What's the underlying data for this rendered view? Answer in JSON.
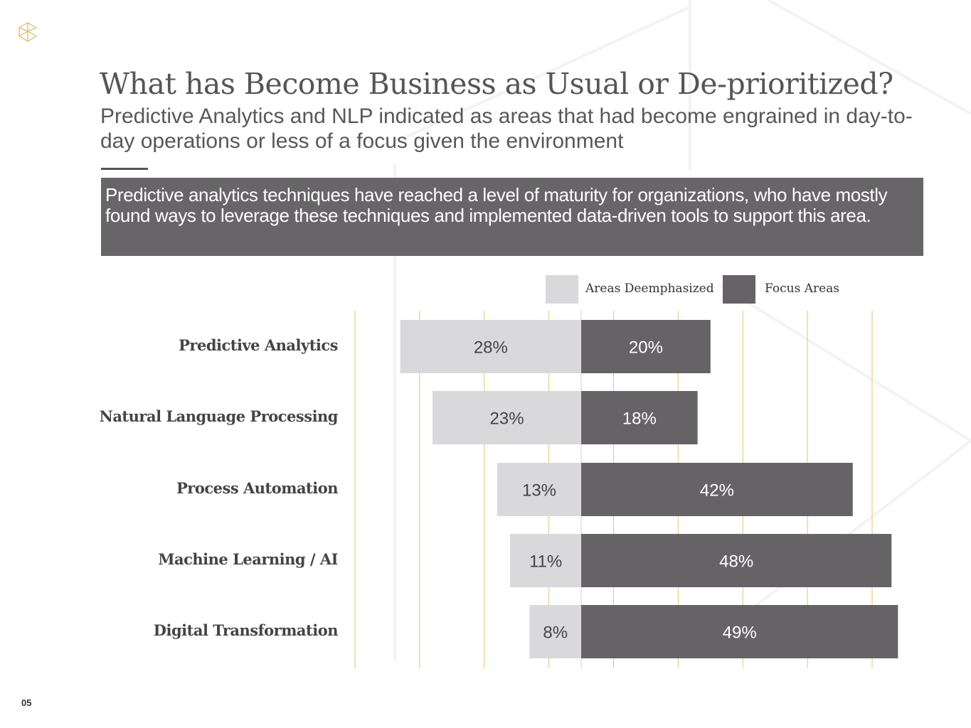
{
  "title": "What has Become Business as Usual or De-prioritized?",
  "subtitle": "Predictive Analytics and NLP indicated as areas that had become engrained in day-to-day operations or less of a focus given the environment",
  "callout": "Predictive analytics techniques have reached a level of maturity for organizations, who have mostly found ways to leverage these techniques and implemented data-driven tools to support this area.",
  "page_number": "05",
  "colors": {
    "deemphasized": "#d9d9db",
    "focus": "#656366",
    "grid": "#e2c56e",
    "accent": "#e0b96a"
  },
  "chart_data": {
    "type": "bar",
    "orientation": "horizontal-diverging",
    "categories": [
      "Predictive Analytics",
      "Natural Language Processing",
      "Process Automation",
      "Machine Learning / AI",
      "Digital Transformation"
    ],
    "series": [
      {
        "name": "Areas Deemphasized",
        "values": [
          28,
          23,
          13,
          11,
          8
        ],
        "labels": [
          "28%",
          "23%",
          "13%",
          "11%",
          "8%"
        ]
      },
      {
        "name": "Focus Areas",
        "values": [
          20,
          18,
          42,
          48,
          49
        ],
        "labels": [
          "20%",
          "18%",
          "42%",
          "48%",
          "49%"
        ]
      }
    ],
    "xlim": [
      -35,
      45
    ],
    "grid": true,
    "legend": "top"
  }
}
